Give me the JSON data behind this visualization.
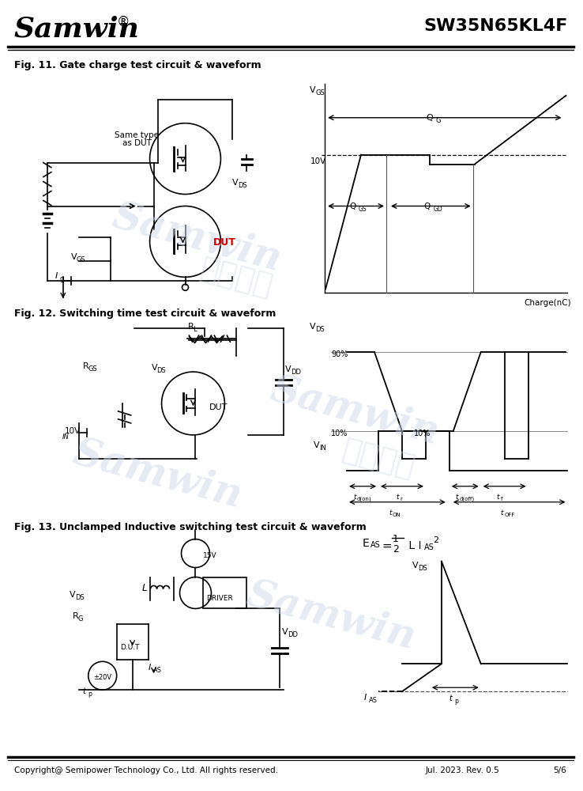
{
  "title_company": "Samwin",
  "title_part": "SW35N65KL4F",
  "fig11_title": "Fig. 11. Gate charge test circuit & waveform",
  "fig12_title": "Fig. 12. Switching time test circuit & waveform",
  "fig13_title": "Fig. 13. Unclamped Inductive switching test circuit & waveform",
  "footer_left": "Copyright@ Semipower Technology Co., Ltd. All rights reserved.",
  "footer_mid": "Jul. 2023. Rev. 0.5",
  "footer_right": "5/6",
  "bg_color": "#ffffff",
  "line_color": "#000000",
  "watermark_color": "#d0d8e8"
}
